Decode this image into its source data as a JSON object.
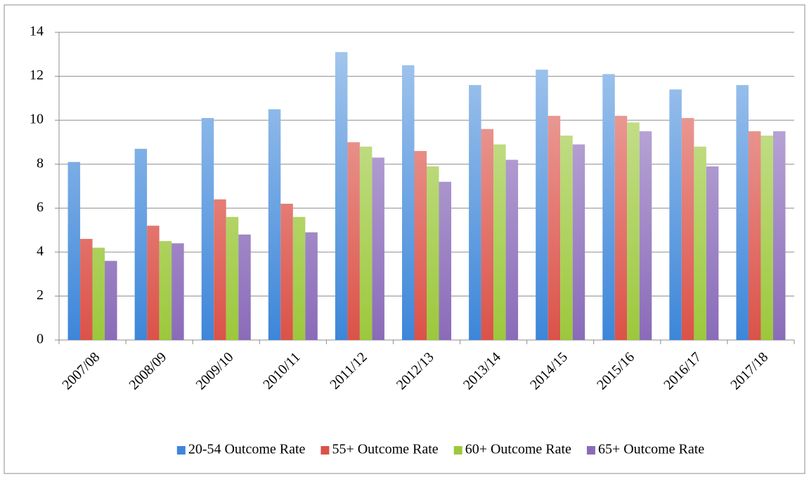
{
  "chart_data": {
    "type": "bar",
    "categories": [
      "2007/08",
      "2008/09",
      "2009/10",
      "2010/11",
      "2011/12",
      "2012/13",
      "2013/14",
      "2014/15",
      "2015/16",
      "2016/17",
      "2017/18"
    ],
    "series": [
      {
        "name": "20-54 Outcome Rate",
        "color": "#3d86d9",
        "values": [
          8.1,
          8.7,
          10.1,
          10.5,
          13.1,
          12.5,
          11.6,
          12.3,
          12.1,
          11.4,
          11.6
        ]
      },
      {
        "name": "55+ Outcome Rate",
        "color": "#db5248",
        "values": [
          4.6,
          5.2,
          6.4,
          6.2,
          9.0,
          8.6,
          9.6,
          10.2,
          10.2,
          10.1,
          9.5
        ]
      },
      {
        "name": "60+ Outcome Rate",
        "color": "#9cc83c",
        "values": [
          4.2,
          4.5,
          5.6,
          5.6,
          8.8,
          7.9,
          8.9,
          9.3,
          9.9,
          8.8,
          9.3
        ]
      },
      {
        "name": "65+ Outcome Rate",
        "color": "#8a6bb9",
        "values": [
          3.6,
          4.4,
          4.8,
          4.9,
          8.3,
          7.2,
          8.2,
          8.9,
          9.5,
          7.9,
          9.5
        ]
      }
    ],
    "ylim": [
      0,
      14
    ],
    "yticks": [
      0,
      2,
      4,
      6,
      8,
      10,
      12,
      14
    ],
    "grid": true,
    "legend": "bottom"
  }
}
